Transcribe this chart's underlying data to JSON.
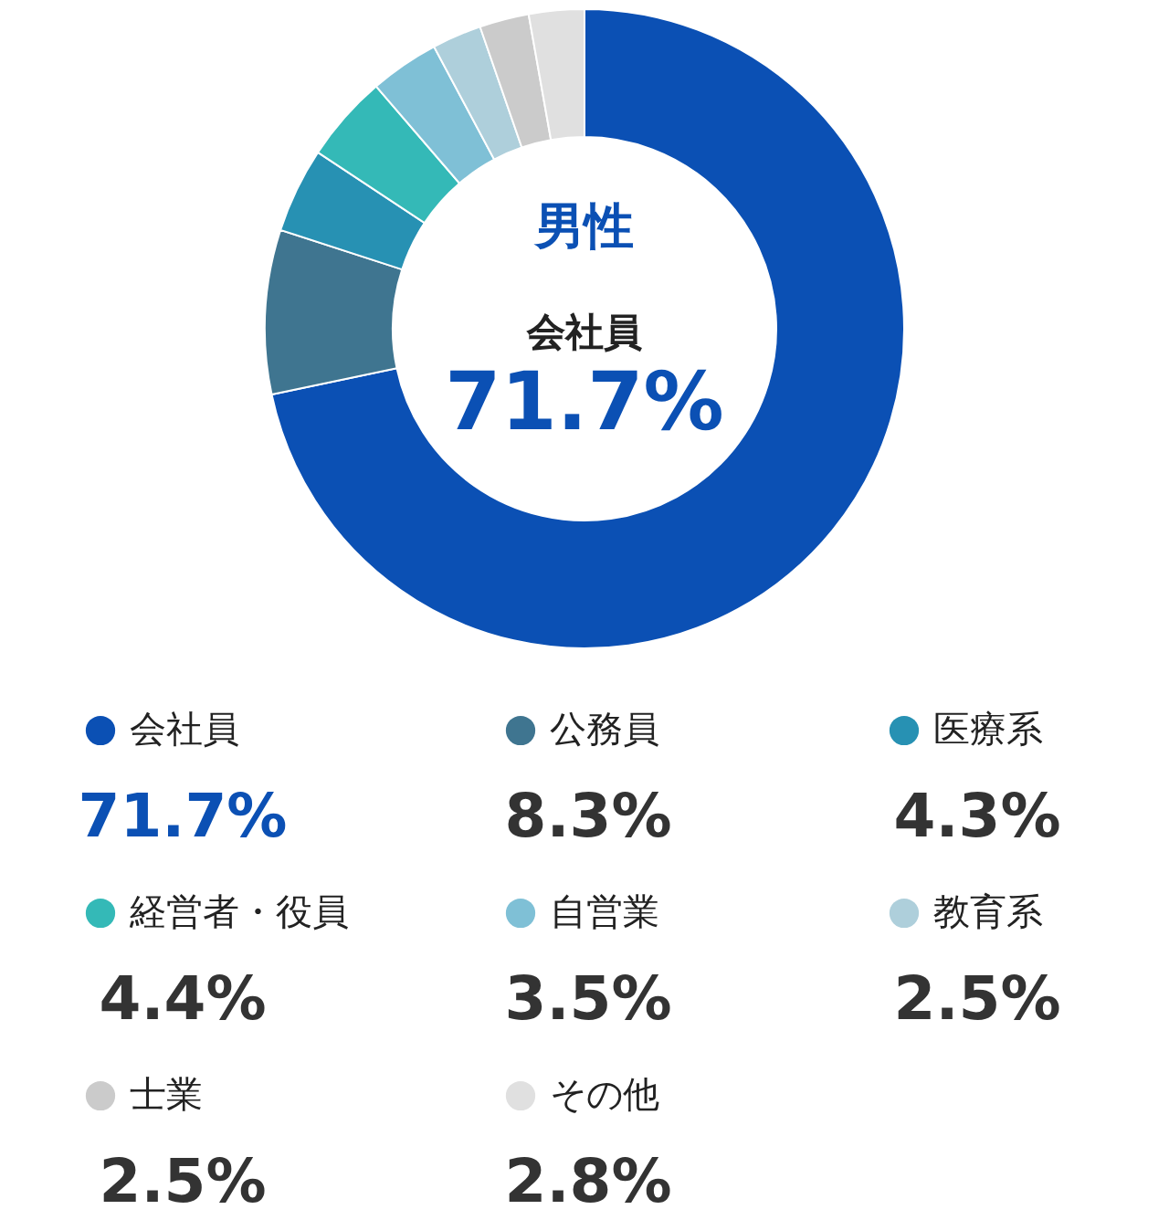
{
  "chart_data": {
    "type": "donut",
    "title": "男性",
    "categories": [
      "会社員",
      "公務員",
      "医療系",
      "経営者・役員",
      "自営業",
      "教育系",
      "士業",
      "その他"
    ],
    "values": [
      71.7,
      8.3,
      4.3,
      4.4,
      3.5,
      2.5,
      2.5,
      2.8
    ],
    "value_labels": [
      "71.7%",
      "8.3%",
      "4.3%",
      "4.4%",
      "3.5%",
      "2.5%",
      "2.5%",
      "2.8%"
    ],
    "colors": [
      "#0b50b4",
      "#3f7590",
      "#2791b3",
      "#34b9b7",
      "#7fc0d6",
      "#aecfdb",
      "#cbcbcb",
      "#e0e0e0"
    ],
    "legend": "bottom"
  }
}
